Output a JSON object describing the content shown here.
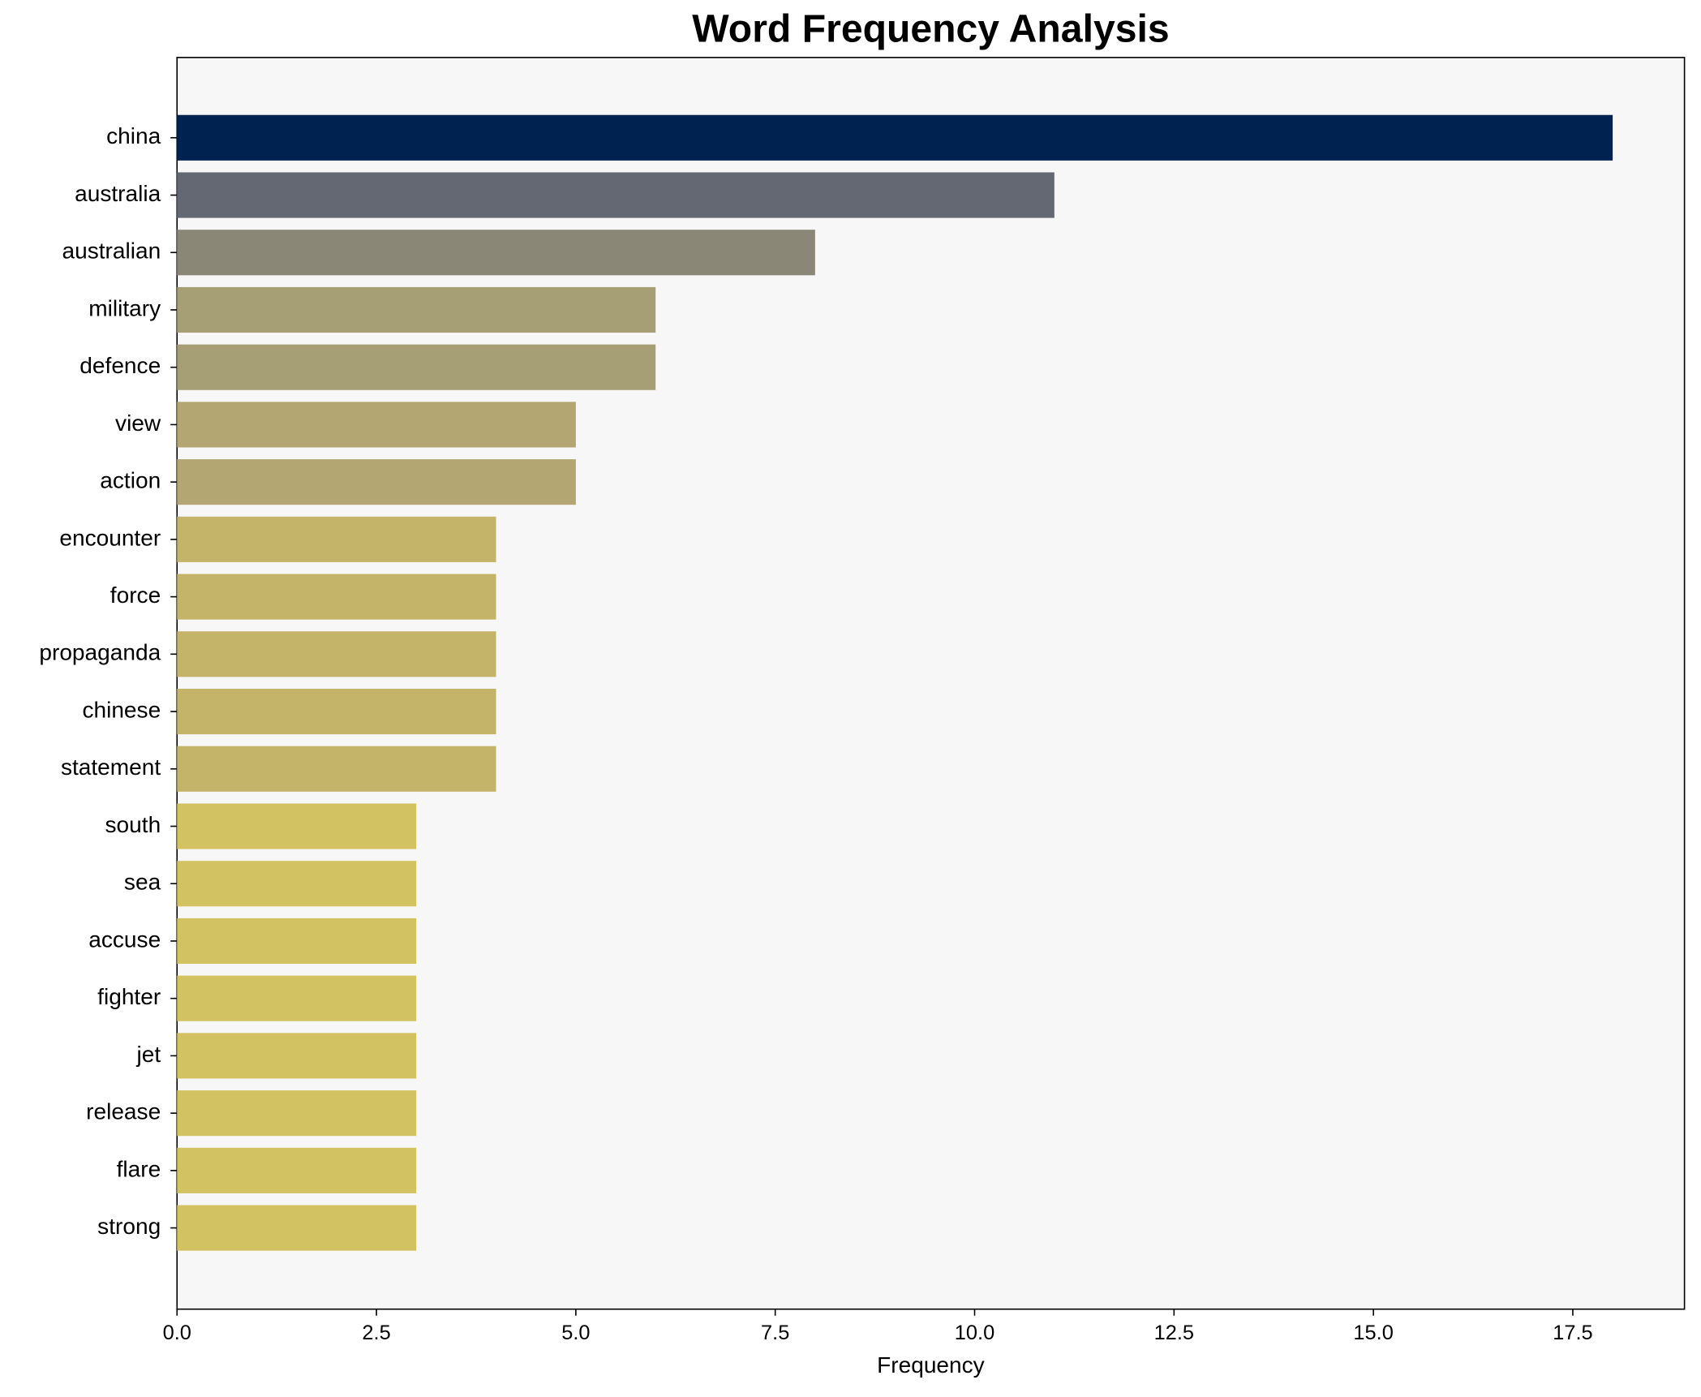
{
  "chart_data": {
    "type": "barh",
    "title": "Word Frequency Analysis",
    "x_label": "Frequency",
    "categories": [
      "china",
      "australia",
      "australian",
      "military",
      "defence",
      "view",
      "action",
      "encounter",
      "force",
      "propaganda",
      "chinese",
      "statement",
      "south",
      "sea",
      "accuse",
      "fighter",
      "jet",
      "release",
      "flare",
      "strong"
    ],
    "values": [
      18,
      11,
      8,
      6,
      6,
      5,
      5,
      4,
      4,
      4,
      4,
      4,
      3,
      3,
      3,
      3,
      3,
      3,
      3,
      3
    ],
    "colors": [
      "#002251",
      "#646873",
      "#8a8776",
      "#a69e74",
      "#a69e74",
      "#b3a672",
      "#b3a672",
      "#c4b46a",
      "#c4b46a",
      "#c4b46a",
      "#c4b46a",
      "#c4b46a",
      "#d3c262",
      "#d3c262",
      "#d3c262",
      "#d3c262",
      "#d3c262",
      "#d3c262",
      "#d3c262",
      "#d3c262"
    ],
    "xlim": [
      0,
      18.9
    ],
    "xticks": [
      {
        "value": 0,
        "label": "0.0"
      },
      2.5,
      {
        "value": 5,
        "label": "5.0"
      },
      7.5,
      {
        "value": 10,
        "label": "10.0"
      },
      12.5,
      {
        "value": 15,
        "label": "15.0"
      },
      17.5
    ],
    "background": "#f7f7f7"
  }
}
